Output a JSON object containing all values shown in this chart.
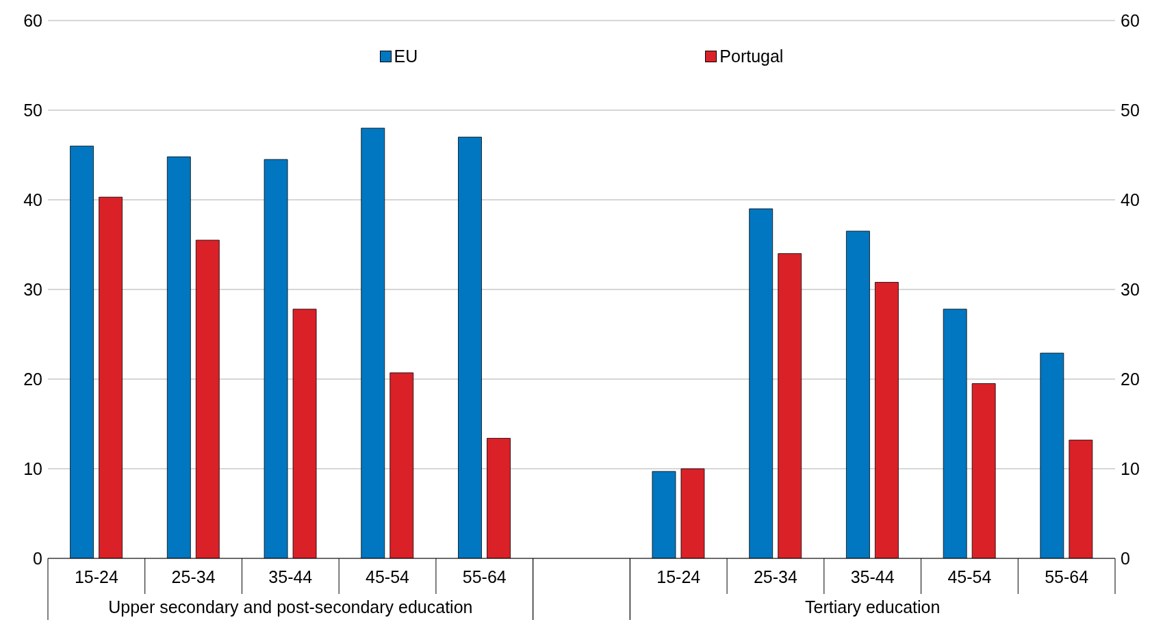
{
  "chart_data": {
    "type": "bar",
    "categories": [
      "15-24",
      "25-34",
      "35-44",
      "45-54",
      "55-64",
      null,
      "15-24",
      "25-34",
      "35-44",
      "45-54",
      "55-64"
    ],
    "series": [
      {
        "name": "EU",
        "color": "#0077c0",
        "values": [
          46,
          44.8,
          44.5,
          48,
          47,
          null,
          9.7,
          39,
          36.5,
          27.8,
          22.9
        ]
      },
      {
        "name": "Portugal",
        "color": "#da2128",
        "values": [
          40.3,
          35.5,
          27.8,
          20.7,
          13.4,
          null,
          10,
          34,
          30.8,
          19.5,
          13.2
        ]
      }
    ],
    "annotations": [
      "Upper secondary and post-secondary education",
      "Tertiary education"
    ],
    "ylim": [
      0,
      60
    ],
    "yticks": [
      0,
      10,
      20,
      30,
      40,
      50,
      60
    ],
    "y2lim": [
      0,
      60
    ],
    "y2ticks": [
      0,
      10,
      20,
      30,
      40,
      50,
      60
    ],
    "grid": "y",
    "legend": "top"
  }
}
